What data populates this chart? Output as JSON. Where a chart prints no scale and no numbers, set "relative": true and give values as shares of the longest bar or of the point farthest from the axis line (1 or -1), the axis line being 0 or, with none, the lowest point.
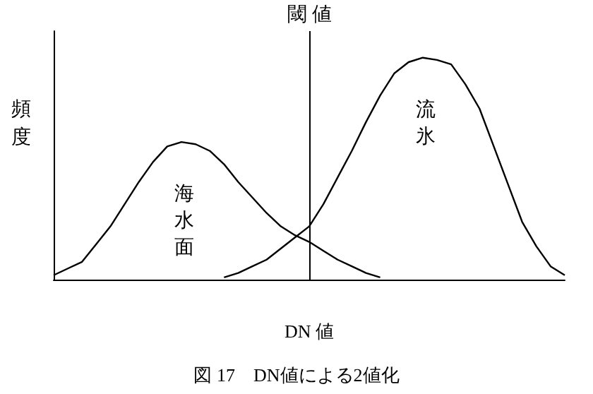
{
  "chart_data": {
    "type": "line",
    "relative": true,
    "title": "図 17　DN値による2値化",
    "xlabel": "DN 値",
    "ylabel": "頻度",
    "categories": [
      null,
      null,
      null,
      null,
      null,
      null,
      null,
      null,
      null,
      null,
      null,
      null,
      null,
      null,
      null,
      null,
      null,
      null,
      null,
      null,
      null,
      null,
      null,
      null,
      null,
      null,
      null,
      null,
      null,
      null,
      null,
      null,
      null,
      null,
      null,
      null,
      null
    ],
    "series": [
      {
        "name": "海水面",
        "color": "#000000",
        "values": [
          0.02,
          0.05,
          0.08,
          0.16,
          0.24,
          0.34,
          0.44,
          0.53,
          0.6,
          0.62,
          0.61,
          0.58,
          0.52,
          0.44,
          0.37,
          0.3,
          0.24,
          0.2,
          0.17,
          0.13,
          0.09,
          0.06,
          0.03,
          0.01,
          null,
          null,
          null,
          null,
          null,
          null,
          null,
          null,
          null,
          null,
          null,
          null,
          null
        ]
      },
      {
        "name": "流氷",
        "color": "#000000",
        "values": [
          null,
          null,
          null,
          null,
          null,
          null,
          null,
          null,
          null,
          null,
          null,
          null,
          0.01,
          0.03,
          0.06,
          0.09,
          0.14,
          0.19,
          0.24,
          0.34,
          0.46,
          0.58,
          0.71,
          0.83,
          0.93,
          0.98,
          1,
          0.99,
          0.97,
          0.88,
          0.77,
          0.6,
          0.43,
          0.26,
          0.15,
          0.06,
          0.02
        ]
      }
    ],
    "annotations": [
      "閾 値"
    ],
    "grid": false,
    "legend": false,
    "marker": "none",
    "line_style": "solid"
  }
}
